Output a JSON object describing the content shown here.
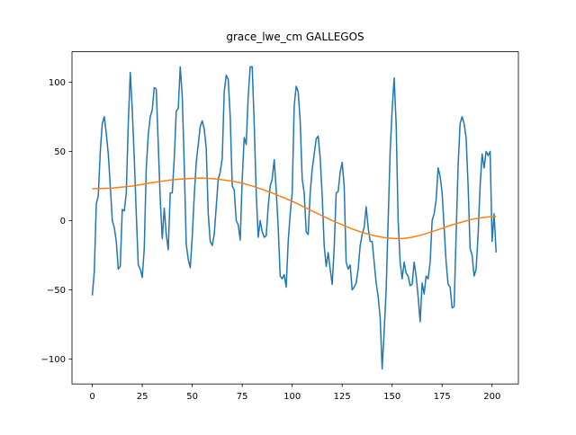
{
  "chart_data": {
    "type": "line",
    "title": "grace_lwe_cm GALLEGOS",
    "xlim": [
      -10.15,
      213.15
    ],
    "ylim": [
      -117.9,
      121.9
    ],
    "xticks": [
      0,
      25,
      50,
      75,
      100,
      125,
      150,
      175,
      200
    ],
    "yticks": [
      {
        "value": -100,
        "label": "−100"
      },
      {
        "value": -50,
        "label": "−50"
      },
      0,
      50,
      100
    ],
    "series": [
      {
        "color": "#1f77b4",
        "x": [
          0,
          1,
          2,
          3,
          4,
          5,
          6,
          7,
          8,
          9,
          10,
          11,
          12,
          13,
          14,
          15,
          16,
          17,
          18,
          19,
          20,
          21,
          22,
          23,
          24,
          25,
          26,
          27,
          28,
          29,
          30,
          31,
          32,
          33,
          34,
          35,
          36,
          37,
          38,
          39,
          40,
          41,
          42,
          43,
          44,
          45,
          46,
          47,
          48,
          49,
          50,
          51,
          52,
          53,
          54,
          55,
          56,
          57,
          58,
          59,
          60,
          61,
          62,
          63,
          64,
          65,
          66,
          67,
          68,
          69,
          70,
          71,
          72,
          73,
          74,
          75,
          76,
          77,
          78,
          79,
          80,
          81,
          82,
          83,
          84,
          85,
          86,
          87,
          88,
          89,
          90,
          91,
          92,
          93,
          94,
          95,
          96,
          97,
          98,
          99,
          100,
          101,
          102,
          103,
          104,
          105,
          106,
          107,
          108,
          109,
          110,
          111,
          112,
          113,
          114,
          115,
          116,
          117,
          118,
          119,
          120,
          121,
          122,
          123,
          124,
          125,
          126,
          127,
          128,
          129,
          130,
          131,
          132,
          133,
          134,
          135,
          136,
          137,
          138,
          139,
          140,
          141,
          142,
          143,
          144,
          145,
          146,
          147,
          148,
          149,
          150,
          151,
          152,
          153,
          154,
          155,
          156,
          157,
          158,
          159,
          160,
          161,
          162,
          163,
          164,
          165,
          166,
          167,
          168,
          169,
          170,
          171,
          172,
          173,
          174,
          175,
          176,
          177,
          178,
          179,
          180,
          181,
          182,
          183,
          184,
          185,
          186,
          187,
          188,
          189,
          190,
          191,
          192,
          193,
          194,
          195,
          196,
          197,
          198,
          199,
          200,
          201,
          202
        ],
        "values": [
          -54,
          -37,
          12,
          18,
          50,
          70,
          75,
          63,
          48,
          25,
          0,
          -5,
          -15,
          -35,
          -33,
          8,
          7,
          20,
          70,
          107,
          80,
          45,
          5,
          -32,
          -35,
          -41,
          -20,
          38,
          62,
          75,
          80,
          96,
          95,
          55,
          15,
          -13,
          9,
          -10,
          -21,
          20,
          20,
          45,
          79,
          81,
          111,
          90,
          40,
          -17,
          -28,
          -34,
          -12,
          18,
          42,
          55,
          68,
          72,
          66,
          52,
          5,
          -15,
          -18,
          -10,
          10,
          30,
          35,
          45,
          93,
          105,
          102,
          75,
          25,
          22,
          0,
          -3,
          -14,
          30,
          60,
          55,
          90,
          111,
          111,
          70,
          20,
          -12,
          0,
          -8,
          -12,
          -11,
          10,
          25,
          30,
          44,
          22,
          -5,
          -40,
          -42,
          -39,
          -48,
          -15,
          5,
          20,
          83,
          97,
          93,
          72,
          30,
          20,
          -8,
          -10,
          20,
          37,
          48,
          59,
          61,
          45,
          18,
          -18,
          -33,
          -23,
          -35,
          -46,
          -20,
          20,
          21,
          35,
          42,
          25,
          -30,
          -35,
          -32,
          -50,
          -48,
          -45,
          -35,
          -18,
          -10,
          -5,
          10,
          -5,
          -15,
          -15,
          -30,
          -45,
          -55,
          -70,
          -107,
          -80,
          -50,
          0,
          50,
          80,
          103,
          70,
          0,
          -30,
          -42,
          -30,
          -38,
          -40,
          -47,
          -46,
          -30,
          -40,
          -55,
          -73,
          -45,
          -53,
          -40,
          -42,
          -30,
          0,
          5,
          15,
          38,
          32,
          20,
          -5,
          -30,
          -46,
          -48,
          -63,
          -62,
          -10,
          40,
          70,
          75,
          70,
          60,
          25,
          -20,
          -25,
          -40,
          -35,
          -10,
          25,
          48,
          38,
          50,
          47,
          50,
          -15,
          5,
          -23
        ]
      },
      {
        "color": "#ff7f0e",
        "x": [
          0,
          5,
          10,
          15,
          20,
          25,
          30,
          35,
          40,
          45,
          50,
          55,
          60,
          65,
          70,
          75,
          80,
          85,
          90,
          95,
          100,
          105,
          110,
          115,
          120,
          125,
          130,
          135,
          140,
          145,
          150,
          155,
          160,
          165,
          170,
          175,
          180,
          185,
          190,
          195,
          200,
          202
        ],
        "values": [
          23,
          23.2,
          23.5,
          24.2,
          25,
          26.2,
          27.5,
          28.5,
          29.5,
          30.1,
          30.5,
          30.7,
          30.3,
          29.5,
          28.5,
          27,
          25,
          22.6,
          20,
          17,
          14,
          10.5,
          7,
          3.5,
          0,
          -3,
          -6,
          -8.5,
          -10.5,
          -12,
          -12.8,
          -13,
          -12,
          -10.2,
          -8,
          -5.5,
          -3,
          -1,
          1,
          2.2,
          3,
          3
        ]
      }
    ]
  }
}
